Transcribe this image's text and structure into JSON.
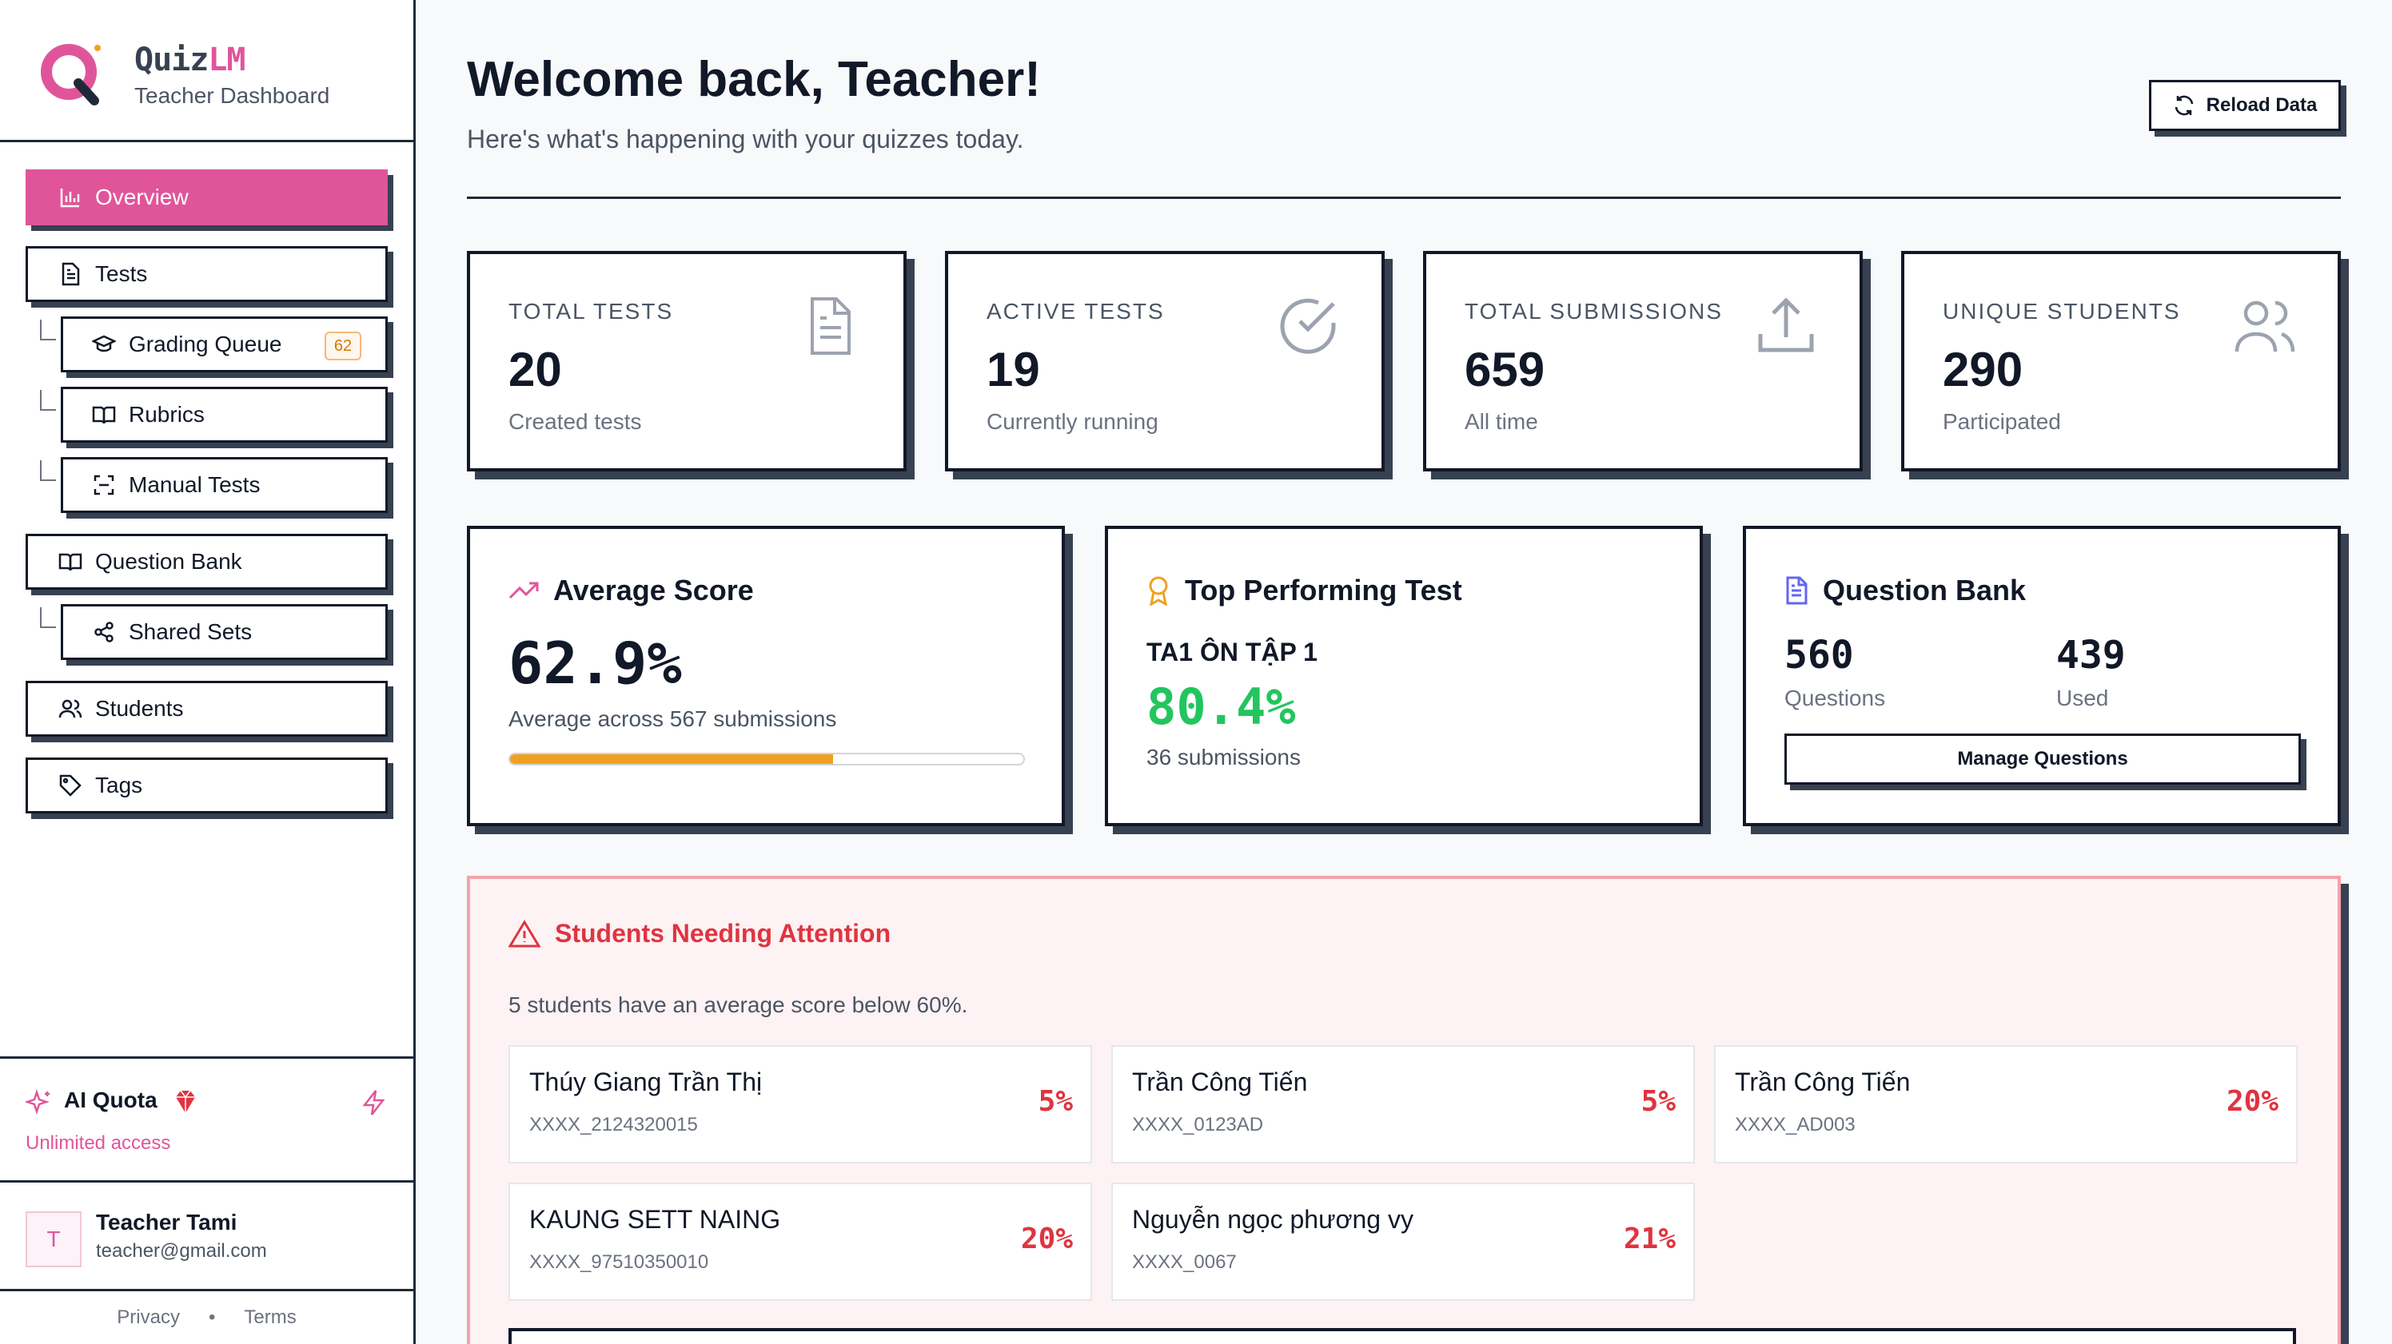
{
  "brand": {
    "name_a": "Quiz",
    "name_b": "LM",
    "subtitle": "Teacher Dashboard"
  },
  "nav": {
    "overview": "Overview",
    "tests": "Tests",
    "grading_queue": "Grading Queue",
    "grading_queue_badge": "62",
    "rubrics": "Rubrics",
    "manual_tests": "Manual Tests",
    "question_bank": "Question Bank",
    "shared_sets": "Shared Sets",
    "students": "Students",
    "tags": "Tags"
  },
  "quota": {
    "title": "AI Quota",
    "status": "Unlimited access"
  },
  "user": {
    "initial": "T",
    "name": "Teacher Tami",
    "email": "teacher@gmail.com"
  },
  "legal": {
    "privacy": "Privacy",
    "sep": "•",
    "terms": "Terms"
  },
  "header": {
    "title": "Welcome back, Teacher!",
    "subtitle": "Here's what's happening with your quizzes today.",
    "reload_label": "Reload Data"
  },
  "stats": [
    {
      "label": "TOTAL TESTS",
      "value": "20",
      "caption": "Created tests",
      "icon": "document-icon"
    },
    {
      "label": "ACTIVE TESTS",
      "value": "19",
      "caption": "Currently running",
      "icon": "check-circle-icon"
    },
    {
      "label": "TOTAL SUBMISSIONS",
      "value": "659",
      "caption": "All time",
      "icon": "upload-icon"
    },
    {
      "label": "UNIQUE STUDENTS",
      "value": "290",
      "caption": "Participated",
      "icon": "users-icon"
    }
  ],
  "average_score": {
    "title": "Average Score",
    "value": "62.9%",
    "caption": "Average across 567 submissions",
    "progress_fraction": 0.629
  },
  "top_test": {
    "title": "Top Performing Test",
    "test_name": "TA1 ÔN TẬP 1",
    "value": "80.4%",
    "caption": "36 submissions"
  },
  "question_bank": {
    "title": "Question Bank",
    "questions_value": "560",
    "questions_label": "Questions",
    "used_value": "439",
    "used_label": "Used",
    "button": "Manage Questions"
  },
  "attention": {
    "title": "Students Needing Attention",
    "subtitle": "5 students have an average score below 60%.",
    "students": [
      {
        "name": "Thúy Giang Trần Thị",
        "id": "XXXX_2124320015",
        "pct": "5%"
      },
      {
        "name": "Trần Công Tiến",
        "id": "XXXX_0123AD",
        "pct": "5%"
      },
      {
        "name": "Trần Công Tiến",
        "id": "XXXX_AD003",
        "pct": "20%"
      },
      {
        "name": "KAUNG SETT NAING",
        "id": "XXXX_97510350010",
        "pct": "20%"
      },
      {
        "name": "Nguyễn ngọc phương vy",
        "id": "XXXX_0067",
        "pct": "21%"
      }
    ]
  },
  "colors": {
    "accent": "#e0559a",
    "success": "#22c55e",
    "danger": "#e0343f",
    "warning": "#f0a020",
    "border": "#111827"
  }
}
